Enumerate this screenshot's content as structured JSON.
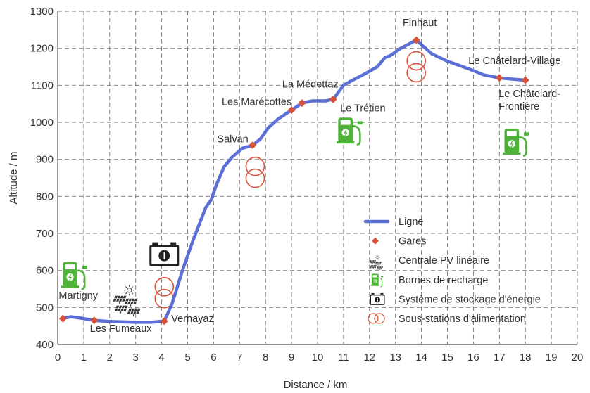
{
  "colors": {
    "line": "#5b6fd6",
    "station": "#d9533c",
    "substation": "#d9533c",
    "charger": "#4fb33a",
    "storage": "#222222",
    "grid": "#777777"
  },
  "chart_data": {
    "type": "line",
    "title": "",
    "xlabel": "Distance / km",
    "ylabel": "Altitude / m",
    "xlim": [
      0,
      20
    ],
    "ylim": [
      400,
      1300
    ],
    "xticks": [
      0,
      1,
      2,
      3,
      4,
      5,
      6,
      7,
      8,
      9,
      10,
      11,
      12,
      13,
      14,
      15,
      16,
      17,
      18,
      19,
      20
    ],
    "yticks": [
      400,
      500,
      600,
      700,
      800,
      900,
      1000,
      1100,
      1200,
      1300
    ],
    "grid": true,
    "legend_position": "bottom-right",
    "series": [
      {
        "name": "Ligne",
        "x": [
          0.2,
          0.5,
          1.0,
          1.4,
          2.0,
          3.0,
          3.6,
          4.1,
          4.4,
          4.8,
          5.2,
          5.7,
          5.9,
          6.1,
          6.4,
          6.7,
          7.1,
          7.5,
          7.8,
          8.1,
          8.5,
          9.0,
          9.4,
          9.8,
          10.3,
          10.6,
          11.0,
          11.3,
          11.8,
          12.3,
          12.6,
          12.8,
          13.2,
          13.8,
          14.4,
          15.0,
          15.8,
          16.4,
          17.0,
          17.6,
          18.0
        ],
        "y": [
          470,
          475,
          470,
          465,
          462,
          460,
          460,
          463,
          510,
          600,
          680,
          770,
          790,
          830,
          880,
          905,
          930,
          938,
          955,
          985,
          1010,
          1033,
          1052,
          1058,
          1058,
          1062,
          1100,
          1112,
          1130,
          1150,
          1175,
          1180,
          1200,
          1222,
          1185,
          1165,
          1145,
          1128,
          1120,
          1116,
          1114
        ]
      }
    ],
    "stations": [
      {
        "name": "Martigny",
        "x": 0.2,
        "y": 470
      },
      {
        "name": "Les Fumeaux",
        "x": 1.4,
        "y": 465
      },
      {
        "name": "Vernayaz",
        "x": 4.1,
        "y": 463
      },
      {
        "name": "Salvan",
        "x": 7.5,
        "y": 938
      },
      {
        "name": "Les Marécottes",
        "x": 9.0,
        "y": 1033
      },
      {
        "name": "La Médettaz",
        "x": 9.4,
        "y": 1052
      },
      {
        "name": "Le Trétien",
        "x": 10.6,
        "y": 1062
      },
      {
        "name": "Finhaut",
        "x": 13.8,
        "y": 1222
      },
      {
        "name": "Le Châtelard-Village",
        "x": 17.0,
        "y": 1120
      },
      {
        "name": "Le Châtelard-Frontière",
        "x": 18.0,
        "y": 1114
      }
    ],
    "station_label_lines": [
      {
        "station": "Martigny",
        "lines": [
          "Martigny"
        ]
      },
      {
        "station": "Les Fumeaux",
        "lines": [
          "Les Fumeaux"
        ]
      },
      {
        "station": "Vernayaz",
        "lines": [
          "Vernayaz"
        ]
      },
      {
        "station": "Salvan",
        "lines": [
          "Salvan"
        ]
      },
      {
        "station": "Les Marécottes",
        "lines": [
          "Les Marécottes"
        ]
      },
      {
        "station": "La Médettaz",
        "lines": [
          "La Médettaz"
        ]
      },
      {
        "station": "Le Trétien",
        "lines": [
          "Le Trétien"
        ]
      },
      {
        "station": "Finhaut",
        "lines": [
          "Finhaut"
        ]
      },
      {
        "station": "Le Châtelard-Village",
        "lines": [
          "Le Châtelard-Village"
        ]
      },
      {
        "station": "Le Châtelard-Frontière",
        "lines": [
          "Le Châtelard-",
          "Frontière"
        ]
      }
    ],
    "substations": [
      {
        "x": 4.1,
        "y": 540
      },
      {
        "x": 7.6,
        "y": 865
      },
      {
        "x": 13.8,
        "y": 1150
      }
    ],
    "charging_stations": [
      {
        "x": 0.6,
        "y": 590
      },
      {
        "x": 11.2,
        "y": 980
      },
      {
        "x": 17.6,
        "y": 950
      }
    ],
    "storage_systems": [
      {
        "x": 4.1,
        "y": 640
      }
    ],
    "pv_plants": [
      {
        "x": 2.7,
        "y": 520
      }
    ],
    "legend": [
      {
        "label": "Ligne",
        "icon": "line-swatch-icon"
      },
      {
        "label": "Gares",
        "icon": "diamond-icon"
      },
      {
        "label": "Centrale PV linéaire",
        "icon": "solar-panel-icon"
      },
      {
        "label": "Bornes de recharge",
        "icon": "charging-station-icon"
      },
      {
        "label": "Système de stockage d'énergie",
        "icon": "battery-icon"
      },
      {
        "label": "Sous-stations d'alimentation",
        "icon": "transformer-icon"
      }
    ]
  }
}
